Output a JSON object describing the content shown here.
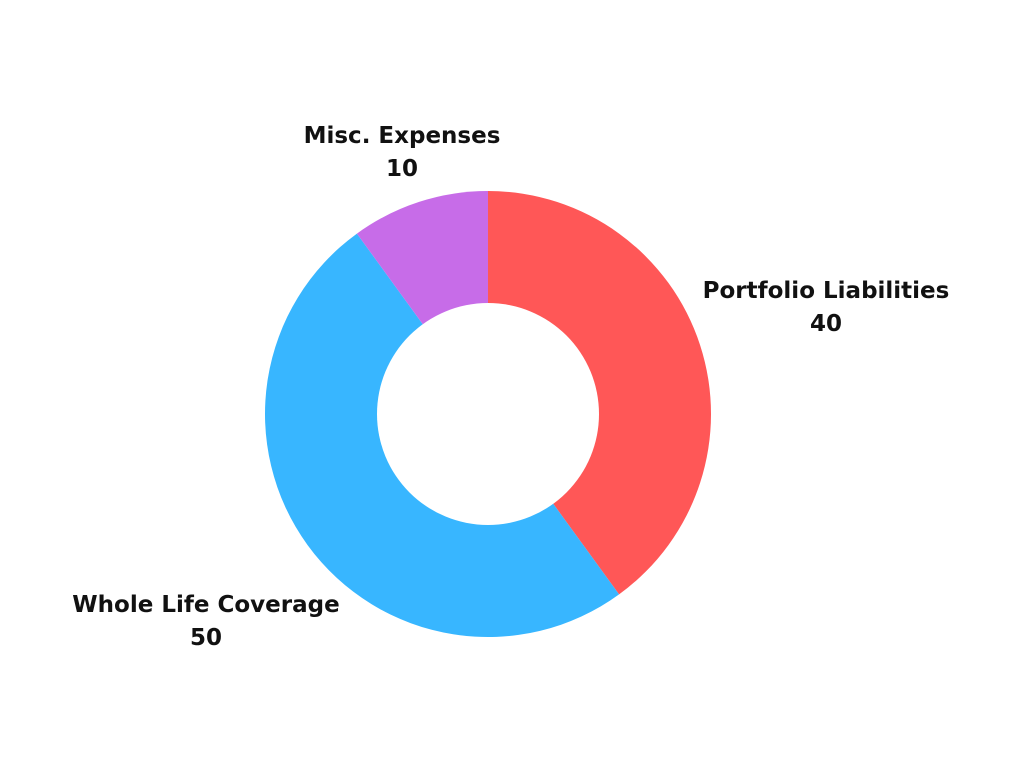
{
  "chart_data": {
    "type": "pie",
    "donut": true,
    "title": "",
    "legend": "none",
    "labels_position": "outside",
    "series": [
      {
        "slices": [
          {
            "label": "Portfolio Liabilities",
            "value": 40,
            "color": "#ff5757"
          },
          {
            "label": "Whole Life Coverage",
            "value": 50,
            "color": "#38b6ff"
          },
          {
            "label": "Misc. Expenses",
            "value": 10,
            "color": "#c76ce8"
          }
        ]
      }
    ],
    "start_angle": "12 o'clock",
    "direction": "clockwise",
    "label_color": "#111111",
    "background": "#ffffff"
  }
}
